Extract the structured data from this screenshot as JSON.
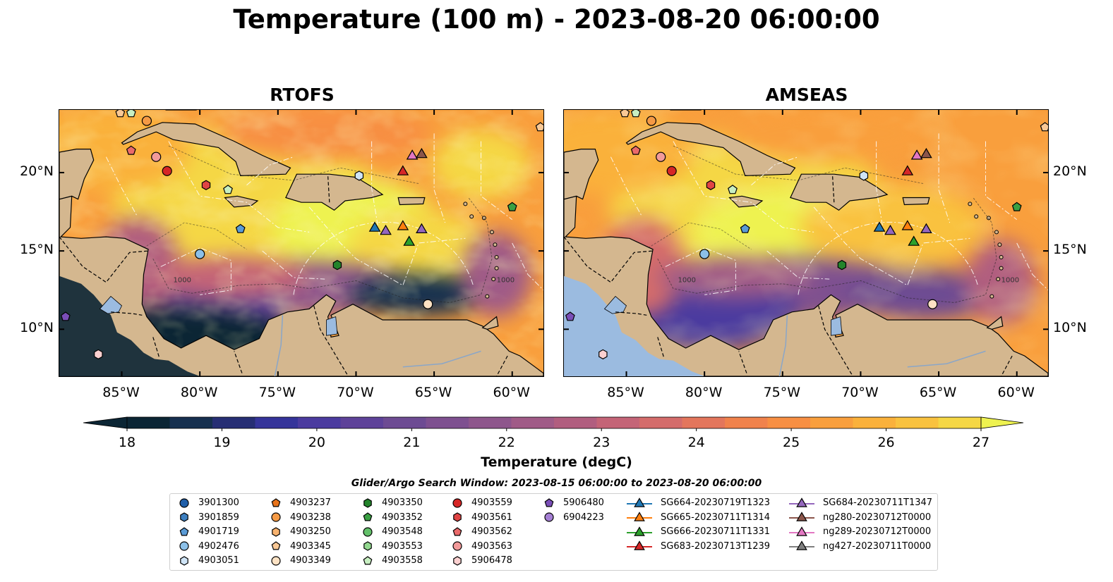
{
  "title": "Temperature (100 m) - 2023-08-20 06:00:00",
  "panels": [
    {
      "title": "RTOFS",
      "variant": "rtofs"
    },
    {
      "title": "AMSEAS",
      "variant": "amseas"
    }
  ],
  "map_extent": {
    "lon_min": -89.0,
    "lon_max": -58.0,
    "lat_min": 7.0,
    "lat_max": 24.0
  },
  "lon_ticks": [
    {
      "value": -85,
      "label": "85°W"
    },
    {
      "value": -80,
      "label": "80°W"
    },
    {
      "value": -75,
      "label": "75°W"
    },
    {
      "value": -70,
      "label": "70°W"
    },
    {
      "value": -65,
      "label": "65°W"
    },
    {
      "value": -60,
      "label": "60°W"
    }
  ],
  "lat_ticks": [
    {
      "value": 20,
      "label": "20°N"
    },
    {
      "value": 15,
      "label": "15°N"
    },
    {
      "value": 10,
      "label": "10°N"
    }
  ],
  "contour_label": "1000",
  "colorbar": {
    "label": "Temperature (degC)",
    "min": 18,
    "max": 27,
    "extend": "both",
    "tick_labels": [
      "18",
      "19",
      "20",
      "21",
      "22",
      "23",
      "24",
      "25",
      "26",
      "27"
    ],
    "colors": [
      "#0b2534",
      "#16304f",
      "#262e74",
      "#35349a",
      "#4b3b9f",
      "#5e4299",
      "#6d4b93",
      "#7e5090",
      "#8e568c",
      "#a05b87",
      "#b15e7f",
      "#c46477",
      "#d46c6b",
      "#e3765c",
      "#f0824c",
      "#f78f43",
      "#f99f3d",
      "#fab13b",
      "#f9c23f",
      "#f5d745",
      "#eef250"
    ],
    "land_color": "#d4b78f",
    "ocean_color": "#9bbbe0"
  },
  "search_window": "Glider/Argo Search Window: 2023-08-15 06:00:00 to 2023-08-20 06:00:00",
  "legend": [
    {
      "label": "3901300",
      "marker": "circle",
      "color": "#1f5ea8"
    },
    {
      "label": "3901859",
      "marker": "hexagon",
      "color": "#3d7fc0"
    },
    {
      "label": "4901719",
      "marker": "pentagon",
      "color": "#5a9bd6"
    },
    {
      "label": "4902476",
      "marker": "circle",
      "color": "#8cc0e8"
    },
    {
      "label": "4903051",
      "marker": "hexagon",
      "color": "#cfe4f6"
    },
    {
      "label": "4903237",
      "marker": "pentagon",
      "color": "#e8731a"
    },
    {
      "label": "4903238",
      "marker": "circle",
      "color": "#f59a45"
    },
    {
      "label": "4903250",
      "marker": "hexagon",
      "color": "#f7b26e"
    },
    {
      "label": "4903345",
      "marker": "pentagon",
      "color": "#f9c895"
    },
    {
      "label": "4903349",
      "marker": "circle",
      "color": "#fde2c4"
    },
    {
      "label": "4903350",
      "marker": "hexagon",
      "color": "#23842b"
    },
    {
      "label": "4903352",
      "marker": "pentagon",
      "color": "#3aa043"
    },
    {
      "label": "4903548",
      "marker": "circle",
      "color": "#63c06a"
    },
    {
      "label": "4903553",
      "marker": "hexagon",
      "color": "#93d88f"
    },
    {
      "label": "4903558",
      "marker": "pentagon",
      "color": "#c8efc2"
    },
    {
      "label": "4903559",
      "marker": "circle",
      "color": "#d62626"
    },
    {
      "label": "4903561",
      "marker": "hexagon",
      "color": "#e04444"
    },
    {
      "label": "4903562",
      "marker": "pentagon",
      "color": "#ea6a6a"
    },
    {
      "label": "4903563",
      "marker": "circle",
      "color": "#f29a9a"
    },
    {
      "label": "5906478",
      "marker": "hexagon",
      "color": "#fbd0d0"
    },
    {
      "label": "5906480",
      "marker": "pentagon",
      "color": "#7a4eb8"
    },
    {
      "label": "6904223",
      "marker": "circle",
      "color": "#a57fd4"
    },
    {
      "label": "SG664-20230719T1323",
      "marker": "triangle",
      "color": "#1f77b4"
    },
    {
      "label": "SG665-20230711T1314",
      "marker": "triangle",
      "color": "#ff7f0e"
    },
    {
      "label": "SG666-20230711T1331",
      "marker": "triangle",
      "color": "#2ca02c"
    },
    {
      "label": "SG683-20230713T1239",
      "marker": "triangle",
      "color": "#d62728"
    },
    {
      "label": "SG684-20230711T1347",
      "marker": "triangle",
      "color": "#9467bd"
    },
    {
      "label": "ng280-20230712T0000",
      "marker": "triangle",
      "color": "#8c564b"
    },
    {
      "label": "ng289-20230712T0000",
      "marker": "triangle",
      "color": "#e377c2"
    },
    {
      "label": "ng427-20230711T0000",
      "marker": "triangle",
      "color": "#7f7f7f"
    }
  ],
  "argo_floats": [
    {
      "label": "4903238",
      "lon": -83.4,
      "lat": 23.3
    },
    {
      "label": "4903345",
      "lon": -85.1,
      "lat": 23.8
    },
    {
      "label": "4903558",
      "lon": -84.4,
      "lat": 23.8
    },
    {
      "label": "4903562",
      "lon": -84.4,
      "lat": 21.4
    },
    {
      "label": "4903563",
      "lon": -82.8,
      "lat": 21.0
    },
    {
      "label": "4903559",
      "lon": -82.1,
      "lat": 20.1
    },
    {
      "label": "4903561",
      "lon": -79.6,
      "lat": 19.2
    },
    {
      "label": "4903558",
      "lon": -78.2,
      "lat": 18.9
    },
    {
      "label": "4903051",
      "lon": -69.8,
      "lat": 19.8
    },
    {
      "label": "4901719",
      "lon": -77.4,
      "lat": 16.4
    },
    {
      "label": "4902476",
      "lon": -80.0,
      "lat": 14.8
    },
    {
      "label": "4903350",
      "lon": -71.2,
      "lat": 14.1
    },
    {
      "label": "4903352",
      "lon": -60.0,
      "lat": 17.8
    },
    {
      "label": "4903349",
      "lon": -65.4,
      "lat": 11.6
    },
    {
      "label": "4903345",
      "lon": -58.2,
      "lat": 22.9
    },
    {
      "label": "5906480",
      "lon": -88.6,
      "lat": 10.8
    },
    {
      "label": "5906478",
      "lon": -86.5,
      "lat": 8.4
    }
  ],
  "gliders": [
    {
      "label": "SG664-20230719T1323",
      "lon": -68.8,
      "lat": 16.5
    },
    {
      "label": "SG684-20230711T1347",
      "lon": -68.1,
      "lat": 16.3
    },
    {
      "label": "SG665-20230711T1314",
      "lon": -67.0,
      "lat": 16.6
    },
    {
      "label": "SG684-20230711T1347",
      "lon": -65.8,
      "lat": 16.4
    },
    {
      "label": "SG666-20230711T1331",
      "lon": -66.6,
      "lat": 15.6
    },
    {
      "label": "SG683-20230713T1239",
      "lon": -67.0,
      "lat": 20.1
    },
    {
      "label": "ng289-20230712T0000",
      "lon": -66.4,
      "lat": 21.1
    },
    {
      "label": "ng280-20230712T0000",
      "lon": -65.8,
      "lat": 21.2
    }
  ]
}
